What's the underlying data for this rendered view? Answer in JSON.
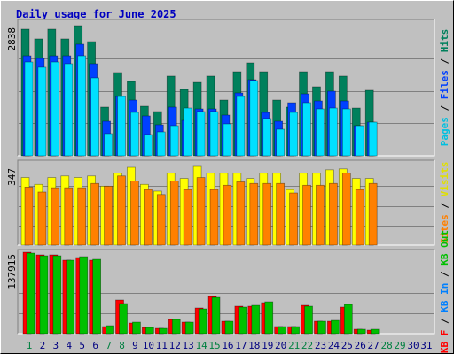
{
  "chart_data": {
    "type": "bar",
    "title": "Daily usage for June 2025",
    "categories": [
      "1",
      "2",
      "3",
      "4",
      "5",
      "6",
      "7",
      "8",
      "9",
      "10",
      "11",
      "12",
      "13",
      "14",
      "15",
      "16",
      "17",
      "18",
      "19",
      "20",
      "21",
      "22",
      "23",
      "24",
      "25",
      "26",
      "27",
      "28",
      "29",
      "30",
      "31"
    ],
    "label_color": "#000080",
    "weekend_color": "#008040",
    "weekend_indices": [
      0,
      6,
      7,
      13,
      14,
      20,
      21,
      27,
      28
    ],
    "panels": [
      {
        "ylim": [
          0,
          2838
        ],
        "yticks": [
          2838
        ],
        "legend": [
          {
            "text": "Pages",
            "color": "#00c0e0"
          },
          {
            "text": " / ",
            "color": "#000000"
          },
          {
            "text": "Files",
            "color": "#0040ff"
          },
          {
            "text": " / ",
            "color": "#000000"
          },
          {
            "text": "Hits",
            "color": "#00805c"
          }
        ],
        "series": [
          {
            "name": "Hits",
            "color": "#00805c",
            "values": [
              2761,
              2549,
              2761,
              2549,
              2838,
              2490,
              1062,
              1815,
              1622,
              1081,
              965,
              1738,
              1448,
              1602,
              1738,
              1216,
              1834,
              2027,
              1834,
              1216,
              1062,
              1834,
              1506,
              1834,
              1738,
              1042,
              1429,
              null,
              null,
              null,
              null
            ]
          },
          {
            "name": "Files",
            "color": "#0040ff",
            "values": [
              2181,
              2124,
              2181,
              2181,
              2433,
              2008,
              753,
              1293,
              1216,
              869,
              676,
              1062,
              772,
              1023,
              1023,
              888,
              1371,
              1660,
              946,
              753,
              1158,
              1351,
              1197,
              1409,
              1197,
              656,
              733,
              null,
              null,
              null,
              null
            ]
          },
          {
            "name": "Pages",
            "color": "#00e0ff",
            "values": [
              2046,
              1931,
              2046,
              2008,
              2181,
              1699,
              483,
              1293,
              946,
              463,
              521,
              656,
              1042,
              965,
              965,
              695,
              1293,
              1641,
              811,
              579,
              946,
              1158,
              1023,
              1042,
              1023,
              656,
              733,
              null,
              null,
              null,
              null
            ]
          }
        ]
      },
      {
        "ylim": [
          0,
          347
        ],
        "yticks": [
          347
        ],
        "legend": [
          {
            "text": "Sites",
            "color": "#ff8000"
          },
          {
            "text": " / ",
            "color": "#000000"
          },
          {
            "text": "Visits",
            "color": "#e0e000"
          }
        ],
        "series": [
          {
            "name": "Visits",
            "color": "#ffff00",
            "values": [
              298,
              268,
              298,
              305,
              298,
              305,
              260,
              317,
              343,
              268,
              238,
              317,
              294,
              347,
              317,
              317,
              317,
              294,
              317,
              317,
              245,
              317,
              317,
              332,
              336,
              294,
              294,
              null,
              null,
              null,
              null
            ]
          },
          {
            "name": "Sites",
            "color": "#ff8000",
            "values": [
              256,
              234,
              253,
              253,
              253,
              272,
              260,
              305,
              283,
              245,
              223,
              283,
              245,
              298,
              245,
              264,
              279,
              272,
              272,
              272,
              230,
              264,
              264,
              272,
              317,
              245,
              272,
              null,
              null,
              null,
              null
            ]
          }
        ]
      },
      {
        "ylim": [
          0,
          137915
        ],
        "yticks": [
          137915
        ],
        "legend": [
          {
            "text": "KB F",
            "color": "#ff0000"
          },
          {
            "text": " / ",
            "color": "#000000"
          },
          {
            "text": "KB In",
            "color": "#0080ff"
          },
          {
            "text": " / ",
            "color": "#000000"
          },
          {
            "text": "KB Out",
            "color": "#00c000"
          }
        ],
        "series": [
          {
            "name": "KB F",
            "color": "#ff0000",
            "values": [
              137915,
              133418,
              133418,
              124424,
              128921,
              124424,
              11992,
              56964,
              17988,
              10493,
              8994,
              23985,
              19488,
              43473,
              62960,
              20987,
              46471,
              46471,
              52467,
              11992,
              11992,
              47970,
              20987,
              20987,
              44972,
              7495,
              5996,
              null,
              null,
              null,
              null
            ]
          },
          {
            "name": "KB Out",
            "color": "#00c000",
            "values": [
              136416,
              131919,
              131919,
              124424,
              130420,
              125923,
              13491,
              50968,
              19488,
              10493,
              8994,
              23985,
              19488,
              41974,
              61461,
              20987,
              44972,
              47970,
              53966,
              11992,
              11992,
              46471,
              20987,
              22486,
              49469,
              7495,
              7495,
              null,
              null,
              null,
              null
            ]
          }
        ]
      }
    ]
  }
}
